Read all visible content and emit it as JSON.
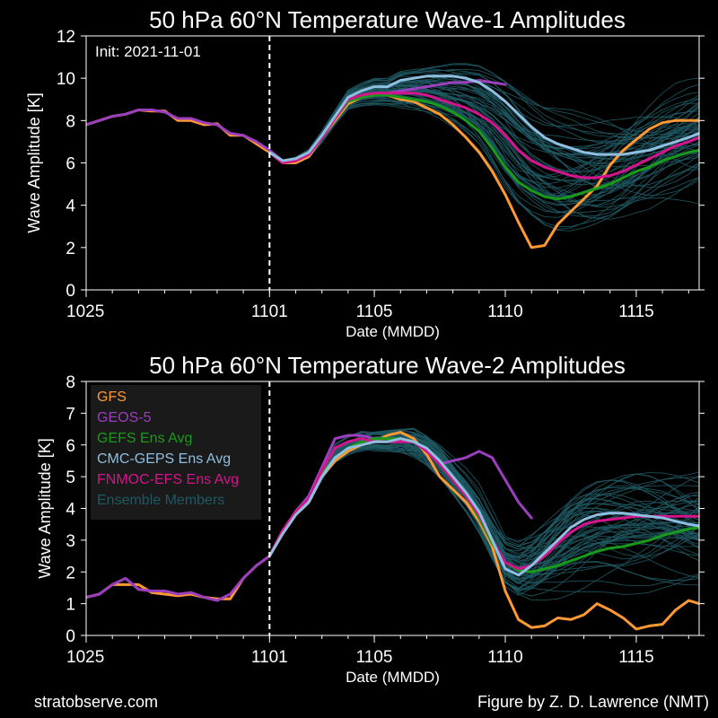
{
  "footer": {
    "left": "stratobserve.com",
    "right": "Figure by Z. D. Lawrence (NMT)"
  },
  "annotation": "Init: 2021-11-01",
  "colors": {
    "GFS": "#ff9933",
    "GEOS-5": "#9b3fbf",
    "GEFS Ens Avg": "#1a9a1a",
    "CMC-GEPS Ens Avg": "#8fbfe0",
    "FNMOC-EFS Ens Avg": "#d4148c",
    "Ensemble Members": "#1f5963",
    "init_line": "#ffffff",
    "background": "#000000",
    "legend_box": "#1b1b1b"
  },
  "chart_data": [
    {
      "type": "line",
      "title": "50 hPa 60°N    Temperature Wave-1 Amplitudes",
      "xlabel": "Date (MMDD)",
      "ylabel": "Wave Amplitude [K]",
      "xlim": [
        0,
        23.4
      ],
      "ylim": [
        0,
        12
      ],
      "x_ticks": [
        0,
        7,
        11,
        16,
        21
      ],
      "x_tick_labels": [
        "1025",
        "1101",
        "1105",
        "1110",
        "1115"
      ],
      "y_ticks": [
        0,
        2,
        4,
        6,
        8,
        10,
        12
      ],
      "y_tick_labels": [
        "0",
        "2",
        "4",
        "6",
        "8",
        "10",
        "12"
      ],
      "init_x": 7,
      "legend": false,
      "x_note": "days since 1025",
      "series": [
        {
          "name": "GFS",
          "x": [
            0,
            0.5,
            1,
            1.5,
            2,
            2.5,
            3,
            3.5,
            4,
            4.5,
            5,
            5.5,
            6,
            6.5,
            7,
            7.5,
            8,
            8.5,
            9,
            9.5,
            10,
            10.5,
            11,
            11.5,
            12,
            12.5,
            13,
            13.5,
            14,
            14.5,
            15,
            15.5,
            16,
            16.5,
            17,
            17.5,
            18,
            18.5,
            19,
            19.5,
            20,
            20.5,
            21,
            21.5,
            22,
            22.5,
            23,
            23.4
          ],
          "values": [
            7.8,
            8.0,
            8.2,
            8.3,
            8.5,
            8.45,
            8.45,
            8.0,
            8.0,
            7.8,
            7.85,
            7.3,
            7.3,
            6.9,
            6.5,
            6.0,
            6.0,
            6.3,
            7.2,
            8.0,
            8.8,
            9.1,
            9.2,
            9.2,
            9.0,
            8.9,
            8.6,
            8.3,
            7.8,
            7.2,
            6.5,
            5.6,
            4.5,
            3.2,
            2.0,
            2.1,
            3.1,
            3.7,
            4.3,
            4.9,
            5.9,
            6.6,
            7.1,
            7.6,
            7.9,
            8.0,
            8.0,
            8.0
          ]
        },
        {
          "name": "GEOS-5",
          "x": [
            0,
            0.5,
            1,
            1.5,
            2,
            2.5,
            3,
            3.5,
            4,
            4.5,
            5,
            5.5,
            6,
            6.5,
            7,
            7.5,
            8,
            8.5,
            9,
            9.5,
            10,
            10.5,
            11,
            11.5,
            12,
            12.5,
            13,
            13.5,
            14,
            14.5,
            15,
            15.5,
            16
          ],
          "values": [
            7.8,
            8.0,
            8.2,
            8.3,
            8.5,
            8.5,
            8.4,
            8.1,
            8.1,
            7.9,
            7.8,
            7.4,
            7.3,
            7.0,
            6.6,
            6.1,
            6.1,
            6.4,
            7.2,
            8.1,
            9.0,
            9.2,
            9.2,
            9.3,
            9.4,
            9.5,
            9.6,
            9.7,
            9.8,
            9.8,
            9.9,
            9.8,
            9.7
          ]
        },
        {
          "name": "GEFS Ens Avg",
          "x": [
            7,
            7.5,
            8,
            8.5,
            9,
            9.5,
            10,
            10.5,
            11,
            11.5,
            12,
            12.5,
            13,
            13.5,
            14,
            14.5,
            15,
            15.5,
            16,
            16.5,
            17,
            17.5,
            18,
            18.5,
            19,
            19.5,
            20,
            20.5,
            21,
            21.5,
            22,
            22.5,
            23,
            23.4
          ],
          "values": [
            6.5,
            6.0,
            6.1,
            6.4,
            7.2,
            8.1,
            8.9,
            9.1,
            9.2,
            9.2,
            9.1,
            9.0,
            8.9,
            8.7,
            8.4,
            8.0,
            7.5,
            6.7,
            5.8,
            5.1,
            4.7,
            4.4,
            4.3,
            4.4,
            4.6,
            4.8,
            5.0,
            5.3,
            5.6,
            5.8,
            6.1,
            6.3,
            6.5,
            6.6
          ]
        },
        {
          "name": "CMC-GEPS Ens Avg",
          "x": [
            7,
            7.5,
            8,
            8.5,
            9,
            9.5,
            10,
            10.5,
            11,
            11.5,
            12,
            12.5,
            13,
            13.5,
            14,
            14.5,
            15,
            15.5,
            16,
            16.5,
            17,
            17.5,
            18,
            18.5,
            19,
            19.5,
            20,
            20.5,
            21,
            21.5,
            22,
            22.5,
            23,
            23.4
          ],
          "values": [
            6.5,
            6.1,
            6.2,
            6.5,
            7.3,
            8.2,
            9.1,
            9.4,
            9.6,
            9.6,
            9.9,
            10.0,
            10.1,
            10.1,
            10.1,
            10.0,
            9.8,
            9.4,
            8.9,
            8.3,
            7.7,
            7.2,
            6.9,
            6.7,
            6.5,
            6.4,
            6.4,
            6.4,
            6.5,
            6.6,
            6.8,
            7.0,
            7.2,
            7.4
          ]
        },
        {
          "name": "FNMOC-EFS Ens Avg",
          "x": [
            7,
            7.5,
            8,
            8.5,
            9,
            9.5,
            10,
            10.5,
            11,
            11.5,
            12,
            12.5,
            13,
            13.5,
            14,
            14.5,
            15,
            15.5,
            16,
            16.5,
            17,
            17.5,
            18,
            18.5,
            19,
            19.5,
            20,
            20.5,
            21,
            21.5,
            22,
            22.5,
            23,
            23.4
          ],
          "values": [
            6.5,
            6.0,
            6.1,
            6.4,
            7.2,
            8.1,
            9.0,
            9.2,
            9.3,
            9.3,
            9.3,
            9.3,
            9.2,
            9.0,
            8.8,
            8.6,
            8.3,
            7.9,
            7.3,
            6.6,
            6.1,
            5.8,
            5.6,
            5.4,
            5.3,
            5.3,
            5.4,
            5.6,
            5.9,
            6.2,
            6.5,
            6.8,
            7.0,
            7.2
          ]
        }
      ]
    },
    {
      "type": "line",
      "title": "50 hPa 60°N    Temperature Wave-2 Amplitudes",
      "xlabel": "Date (MMDD)",
      "ylabel": "Wave Amplitude [K]",
      "xlim": [
        0,
        23.4
      ],
      "ylim": [
        0,
        8
      ],
      "x_ticks": [
        0,
        7,
        11,
        16,
        21
      ],
      "x_tick_labels": [
        "1025",
        "1101",
        "1105",
        "1110",
        "1115"
      ],
      "y_ticks": [
        0,
        1,
        2,
        3,
        4,
        5,
        6,
        7,
        8
      ],
      "y_tick_labels": [
        "0",
        "1",
        "2",
        "3",
        "4",
        "5",
        "6",
        "7",
        "8"
      ],
      "init_x": 7,
      "legend": true,
      "legend_position": "upper-left",
      "legend_entries": [
        "GFS",
        "GEOS-5",
        "GEFS Ens Avg",
        "CMC-GEPS Ens Avg",
        "FNMOC-EFS Ens Avg",
        "Ensemble Members"
      ],
      "series": [
        {
          "name": "GFS",
          "x": [
            0,
            0.5,
            1,
            1.5,
            2,
            2.5,
            3,
            3.5,
            4,
            4.5,
            5,
            5.5,
            6,
            6.5,
            7,
            7.5,
            8,
            8.5,
            9,
            9.5,
            10,
            10.5,
            11,
            11.5,
            12,
            12.5,
            13,
            13.5,
            14,
            14.5,
            15,
            15.5,
            16,
            16.5,
            17,
            17.5,
            18,
            18.5,
            19,
            19.5,
            20,
            20.5,
            21,
            21.5,
            22,
            22.5,
            23,
            23.4
          ],
          "values": [
            1.2,
            1.3,
            1.6,
            1.6,
            1.6,
            1.35,
            1.3,
            1.25,
            1.3,
            1.2,
            1.15,
            1.15,
            1.8,
            2.2,
            2.5,
            3.2,
            3.8,
            4.2,
            5.0,
            5.5,
            5.8,
            6.0,
            6.1,
            6.3,
            6.4,
            6.2,
            5.7,
            5.0,
            4.6,
            4.2,
            3.6,
            2.8,
            1.4,
            0.5,
            0.25,
            0.3,
            0.55,
            0.5,
            0.65,
            1.0,
            0.8,
            0.55,
            0.2,
            0.3,
            0.35,
            0.8,
            1.1,
            1.0
          ]
        },
        {
          "name": "GEOS-5",
          "x": [
            0,
            0.5,
            1,
            1.5,
            2,
            2.5,
            3,
            3.5,
            4,
            4.5,
            5,
            5.5,
            6,
            6.5,
            7,
            7.5,
            8,
            8.5,
            9,
            9.5,
            10,
            10.5,
            11,
            11.5,
            12,
            12.5,
            13,
            13.5,
            14,
            14.5,
            15,
            15.5,
            16,
            16.5,
            17
          ],
          "values": [
            1.2,
            1.3,
            1.6,
            1.8,
            1.45,
            1.4,
            1.4,
            1.3,
            1.35,
            1.2,
            1.1,
            1.3,
            1.8,
            2.2,
            2.5,
            3.3,
            3.9,
            4.4,
            5.3,
            6.2,
            6.3,
            6.3,
            6.2,
            6.2,
            6.2,
            6.1,
            5.8,
            5.4,
            5.5,
            5.6,
            5.8,
            5.6,
            4.9,
            4.2,
            3.7
          ]
        },
        {
          "name": "GEFS Ens Avg",
          "x": [
            7,
            7.5,
            8,
            8.5,
            9,
            9.5,
            10,
            10.5,
            11,
            11.5,
            12,
            12.5,
            13,
            13.5,
            14,
            14.5,
            15,
            15.5,
            16,
            16.5,
            17,
            17.5,
            18,
            18.5,
            19,
            19.5,
            20,
            20.5,
            21,
            21.5,
            22,
            22.5,
            23,
            23.4
          ],
          "values": [
            2.5,
            3.3,
            3.9,
            4.3,
            5.1,
            5.6,
            5.9,
            6.1,
            6.2,
            6.2,
            6.2,
            6.1,
            5.9,
            5.5,
            5.0,
            4.4,
            3.7,
            2.9,
            2.3,
            2.05,
            2.0,
            2.1,
            2.2,
            2.35,
            2.5,
            2.65,
            2.75,
            2.8,
            2.9,
            3.0,
            3.15,
            3.25,
            3.35,
            3.4
          ]
        },
        {
          "name": "CMC-GEPS Ens Avg",
          "x": [
            7,
            7.5,
            8,
            8.5,
            9,
            9.5,
            10,
            10.5,
            11,
            11.5,
            12,
            12.5,
            13,
            13.5,
            14,
            14.5,
            15,
            15.5,
            16,
            16.5,
            17,
            17.5,
            18,
            18.5,
            19,
            19.5,
            20,
            20.5,
            21,
            21.5,
            22,
            22.5,
            23,
            23.4
          ],
          "values": [
            2.5,
            3.2,
            3.8,
            4.2,
            5.0,
            5.6,
            5.9,
            6.0,
            6.1,
            6.1,
            6.2,
            6.1,
            5.9,
            5.5,
            5.0,
            4.5,
            3.9,
            3.0,
            2.1,
            1.9,
            2.2,
            2.6,
            3.0,
            3.4,
            3.65,
            3.8,
            3.85,
            3.85,
            3.8,
            3.75,
            3.7,
            3.6,
            3.5,
            3.45
          ]
        },
        {
          "name": "FNMOC-EFS Ens Avg",
          "x": [
            7,
            7.5,
            8,
            8.5,
            9,
            9.5,
            10,
            10.5,
            11,
            11.5,
            12,
            12.5,
            13,
            13.5,
            14,
            14.5,
            15,
            15.5,
            16,
            16.5,
            17,
            17.5,
            18,
            18.5,
            19,
            19.5,
            20,
            20.5,
            21,
            21.5,
            22,
            22.5,
            23,
            23.4
          ],
          "values": [
            2.5,
            3.3,
            3.9,
            4.3,
            5.2,
            5.9,
            6.1,
            6.2,
            6.1,
            6.1,
            6.1,
            6.1,
            5.8,
            5.4,
            4.9,
            4.4,
            3.8,
            3.0,
            2.3,
            2.1,
            2.2,
            2.5,
            2.9,
            3.25,
            3.5,
            3.6,
            3.65,
            3.7,
            3.75,
            3.75,
            3.75,
            3.75,
            3.75,
            3.75
          ]
        }
      ]
    }
  ]
}
